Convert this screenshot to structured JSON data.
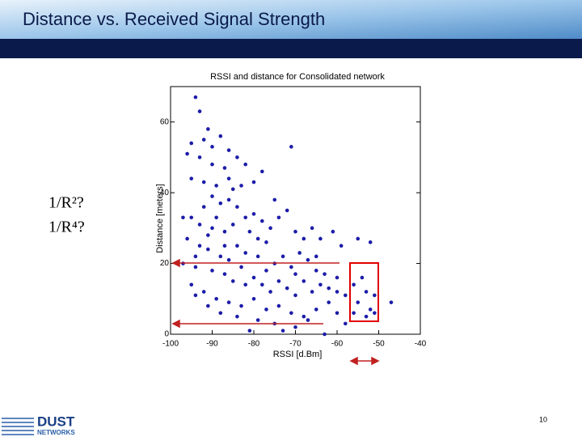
{
  "slide": {
    "heading": "Distance vs. Received Signal Strength",
    "annotations": [
      "1/R²?",
      "1/R⁴?"
    ],
    "page_number": "10",
    "logo": [
      "DUST",
      "NETWORKS"
    ]
  },
  "chart_data": {
    "type": "scatter",
    "title": "RSSI and distance for Consolidated network",
    "x_label": "RSSI [d.Bm]",
    "y_label": "Distance [meters]",
    "color": "#1c1ca8",
    "xlim": [
      -100,
      -40
    ],
    "xticks": [
      -100,
      -90,
      -80,
      -70,
      -60,
      -50,
      -40
    ],
    "ylim": [
      0,
      70
    ],
    "yticks": [
      0,
      20,
      40,
      60
    ],
    "grid": false,
    "x": [
      -94,
      -93,
      -91,
      -92,
      -95,
      -90,
      -88,
      -86,
      -84,
      -93,
      -96,
      -90,
      -87,
      -82,
      -78,
      -71,
      -80,
      -95,
      -92,
      -89,
      -85,
      -83,
      -90,
      -88,
      -86,
      -84,
      -92,
      -95,
      -97,
      -93,
      -90,
      -87,
      -85,
      -82,
      -80,
      -78,
      -76,
      -74,
      -72,
      -70,
      -68,
      -66,
      -64,
      -61,
      -59,
      -55,
      -52,
      -96,
      -93,
      -91,
      -88,
      -86,
      -84,
      -82,
      -79,
      -77,
      -75,
      -73,
      -71,
      -69,
      -67,
      -65,
      -63,
      -97,
      -94,
      -90,
      -87,
      -85,
      -82,
      -80,
      -78,
      -76,
      -74,
      -72,
      -70,
      -68,
      -66,
      -64,
      -62,
      -60,
      -58,
      -56,
      -54,
      -53,
      -51,
      -55,
      -52,
      -56,
      -53,
      -51,
      -47,
      -95,
      -92,
      -89,
      -86,
      -83,
      -80,
      -77,
      -74,
      -71,
      -68,
      -65,
      -62,
      -60,
      -94,
      -91,
      -88,
      -84,
      -79,
      -75,
      -70,
      -63,
      -81,
      -73,
      -67,
      -58,
      -83,
      -79,
      -75,
      -89,
      -86,
      -91,
      -94,
      -87,
      -81,
      -77,
      -70,
      -65,
      -60
    ],
    "values": [
      67,
      63,
      58,
      55,
      54,
      53,
      56,
      52,
      50,
      50,
      51,
      48,
      47,
      48,
      46,
      53,
      43,
      44,
      43,
      42,
      41,
      42,
      39,
      37,
      38,
      36,
      36,
      33,
      33,
      31,
      30,
      29,
      31,
      33,
      34,
      32,
      30,
      33,
      35,
      29,
      27,
      30,
      27,
      29,
      25,
      27,
      26,
      27,
      25,
      24,
      22,
      21,
      25,
      23,
      22,
      26,
      20,
      22,
      19,
      23,
      21,
      18,
      17,
      20,
      19,
      18,
      17,
      15,
      14,
      16,
      14,
      12,
      15,
      13,
      11,
      15,
      12,
      14,
      13,
      12,
      11,
      14,
      16,
      12,
      11,
      9,
      7,
      6,
      5,
      6,
      9,
      14,
      12,
      10,
      9,
      8,
      10,
      7,
      8,
      6,
      5,
      7,
      9,
      6,
      11,
      8,
      6,
      5,
      4,
      3,
      2,
      0,
      1,
      1,
      4,
      3,
      19,
      27,
      38,
      33,
      44,
      28,
      22,
      25,
      29,
      18,
      17,
      22,
      16
    ]
  }
}
